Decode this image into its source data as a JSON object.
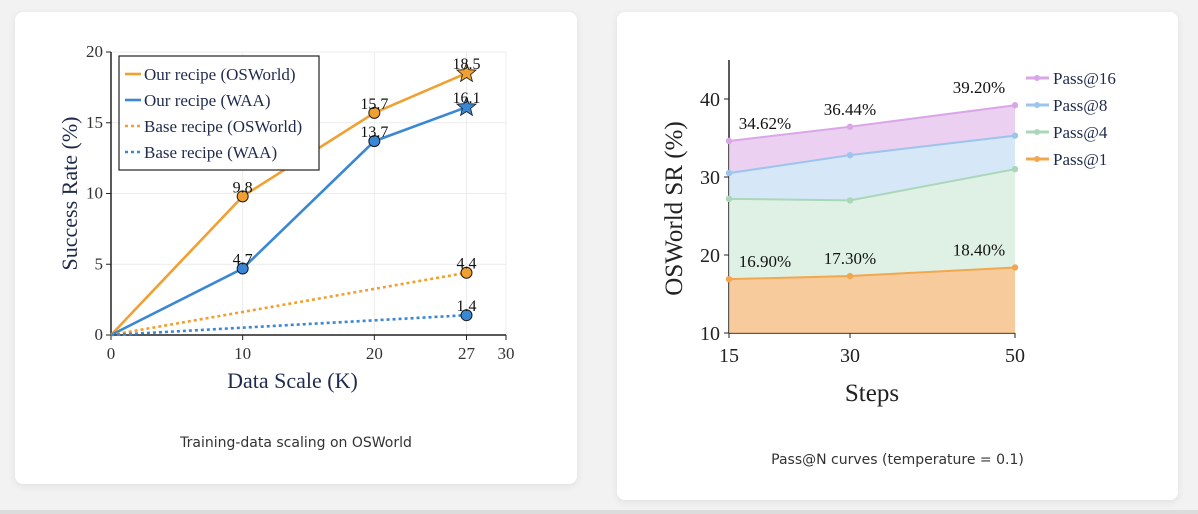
{
  "chart_data": [
    {
      "type": "line",
      "caption": "Training-data scaling on OSWorld",
      "xlabel": "Data Scale (K)",
      "ylabel": "Success Rate (%)",
      "xlim": [
        0,
        30
      ],
      "ylim": [
        0,
        20
      ],
      "xticks": [
        "0",
        "10",
        "20",
        "27",
        "30"
      ],
      "yticks": [
        "0",
        "5",
        "10",
        "15",
        "20"
      ],
      "grid": true,
      "legend_position": "top-left",
      "series": [
        {
          "name": "Our recipe (OSWorld)",
          "color": "#f0a030",
          "dash": "solid",
          "points": [
            [
              0,
              0
            ],
            [
              10,
              9.8
            ],
            [
              20,
              15.7
            ],
            [
              27,
              18.5
            ]
          ],
          "labels": [
            "",
            "9.8",
            "15.7",
            "18.5"
          ],
          "end_marker": "star"
        },
        {
          "name": "Our recipe (WAA)",
          "color": "#3a87d6",
          "dash": "solid",
          "points": [
            [
              0,
              0
            ],
            [
              10,
              4.7
            ],
            [
              20,
              13.7
            ],
            [
              27,
              16.1
            ]
          ],
          "labels": [
            "",
            "4.7",
            "13.7",
            "16.1"
          ],
          "end_marker": "star"
        },
        {
          "name": "Base recipe (OSWorld)",
          "color": "#f0a030",
          "dash": "dotted",
          "points": [
            [
              0,
              0
            ],
            [
              27,
              4.4
            ]
          ],
          "labels": [
            "",
            "4.4"
          ],
          "end_marker": "circle"
        },
        {
          "name": "Base recipe (WAA)",
          "color": "#3a87d6",
          "dash": "dotted",
          "points": [
            [
              0,
              0
            ],
            [
              27,
              1.4
            ]
          ],
          "labels": [
            "",
            "1.4"
          ],
          "end_marker": "circle"
        }
      ]
    },
    {
      "type": "area",
      "caption": "Pass@N curves (temperature = 0.1)",
      "xlabel": "Steps",
      "ylabel": "OSWorld SR (%)",
      "x": [
        "15",
        "30",
        "50"
      ],
      "ylim": [
        10,
        45
      ],
      "yticks": [
        "10",
        "20",
        "30",
        "40"
      ],
      "legend_position": "top-right",
      "series": [
        {
          "name": "Pass@16",
          "color": "#e8c8ef",
          "line": "#d9a6e6",
          "values": [
            34.62,
            36.44,
            39.2
          ],
          "labels": [
            "34.62%",
            "36.44%",
            "39.20%"
          ]
        },
        {
          "name": "Pass@8",
          "color": "#cfe3f7",
          "line": "#9cc4ec",
          "values": [
            30.5,
            32.8,
            35.3
          ]
        },
        {
          "name": "Pass@4",
          "color": "#d9efe0",
          "line": "#a9d7b8",
          "values": [
            27.2,
            27.0,
            31.0
          ]
        },
        {
          "name": "Pass@1",
          "color": "#f7c28c",
          "line": "#f2a74f",
          "values": [
            16.9,
            17.3,
            18.4
          ],
          "labels": [
            "16.90%",
            "17.30%",
            "18.40%"
          ]
        }
      ]
    }
  ]
}
